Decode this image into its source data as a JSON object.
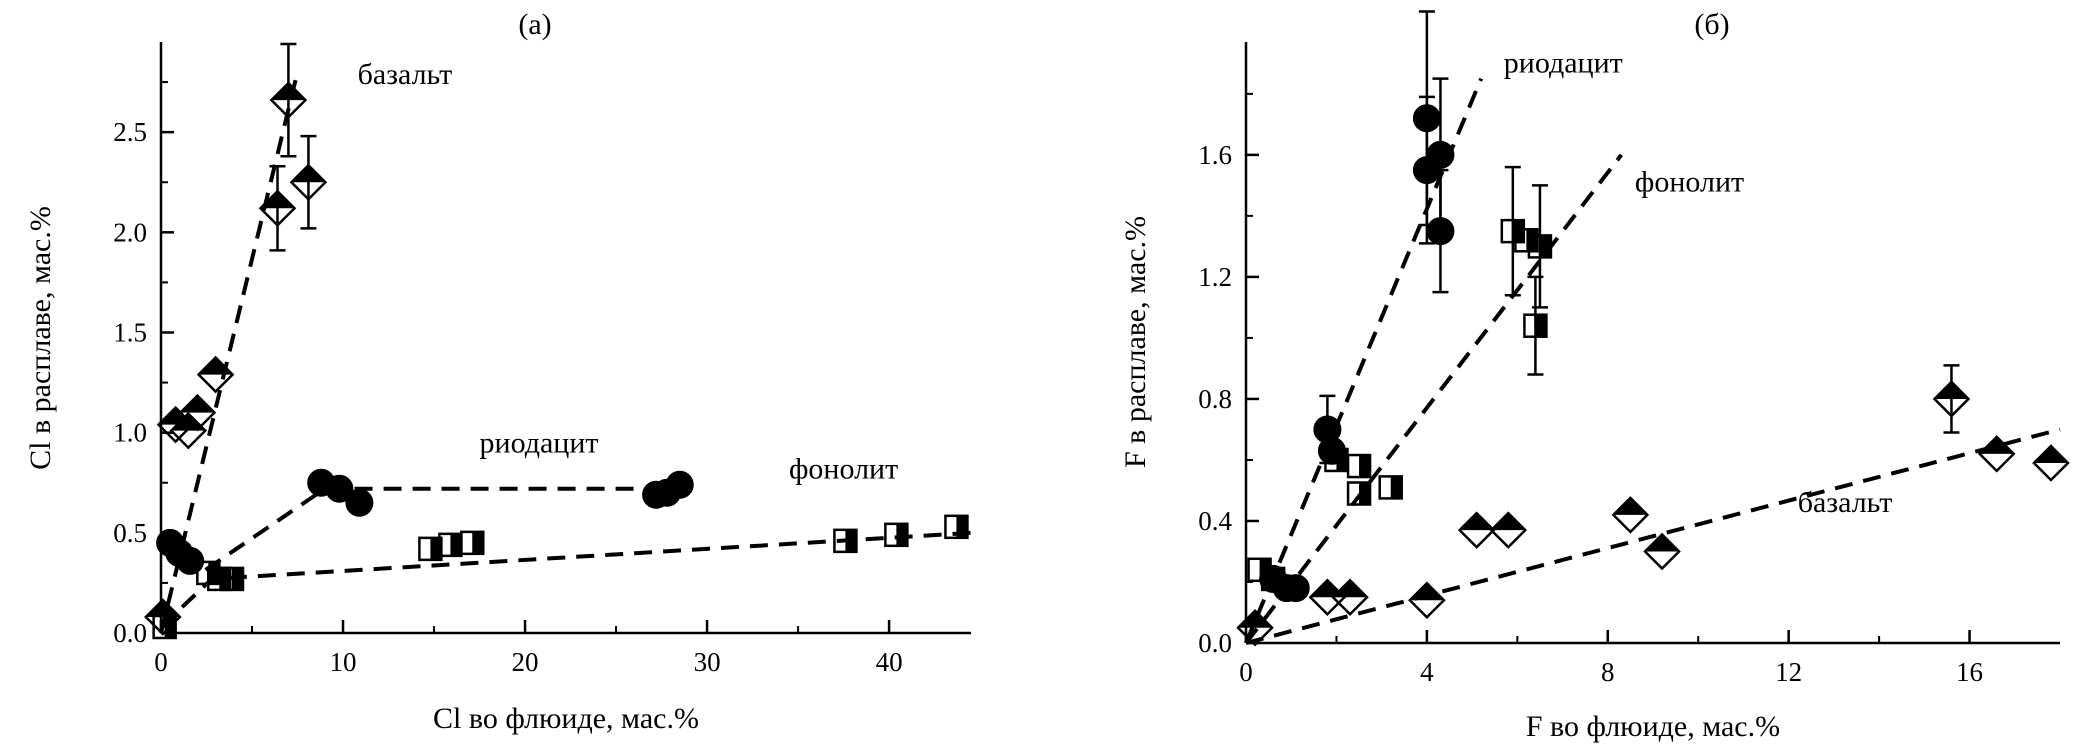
{
  "figure": {
    "panels": [
      "(a)",
      "(б)"
    ]
  },
  "chart_data": [
    {
      "type": "scatter",
      "panel_label": "(a)",
      "xlabel": "Cl во флюиде, мас.%",
      "ylabel": "Cl в расплаве, мас.%",
      "xlim": [
        0,
        44.5
      ],
      "ylim": [
        0,
        2.95
      ],
      "xticks": [
        0,
        10,
        20,
        30,
        40
      ],
      "xtick_labels": [
        "0",
        "10",
        "20",
        "30",
        "40"
      ],
      "yticks": [
        0,
        0.5,
        1.0,
        1.5,
        2.0,
        2.5
      ],
      "ytick_labels": [
        "0.0",
        "0.5",
        "1.0",
        "1.5",
        "2.0",
        "2.5"
      ],
      "grid": false,
      "legend": "none",
      "series": [
        {
          "name": "базальт",
          "marker": "half-filled-diamond",
          "points": [
            {
              "x": 0.1,
              "y": 0.08
            },
            {
              "x": 0.8,
              "y": 1.04
            },
            {
              "x": 1.5,
              "y": 1.01
            },
            {
              "x": 2.0,
              "y": 1.1
            },
            {
              "x": 3.0,
              "y": 1.29
            },
            {
              "x": 6.4,
              "y": 2.12,
              "err": 0.21
            },
            {
              "x": 7.0,
              "y": 2.66,
              "err": 0.28
            },
            {
              "x": 8.1,
              "y": 2.25,
              "err": 0.23
            }
          ],
          "fit": [
            [
              0,
              0
            ],
            [
              7.5,
              2.8
            ]
          ]
        },
        {
          "name": "риодацит",
          "marker": "filled-circle",
          "points": [
            {
              "x": 0.5,
              "y": 0.45
            },
            {
              "x": 1.0,
              "y": 0.4
            },
            {
              "x": 1.6,
              "y": 0.36
            },
            {
              "x": 8.8,
              "y": 0.75
            },
            {
              "x": 9.8,
              "y": 0.72
            },
            {
              "x": 10.9,
              "y": 0.65
            },
            {
              "x": 27.2,
              "y": 0.69
            },
            {
              "x": 27.8,
              "y": 0.7
            },
            {
              "x": 28.5,
              "y": 0.74
            }
          ],
          "fit": [
            [
              0,
              0.47
            ],
            [
              2.2,
              0.3
            ],
            [
              9.0,
              0.72
            ],
            [
              28.8,
              0.72
            ]
          ]
        },
        {
          "name": "фонолит",
          "marker": "half-filled-square",
          "points": [
            {
              "x": 0.2,
              "y": 0.03
            },
            {
              "x": 2.6,
              "y": 0.3
            },
            {
              "x": 3.2,
              "y": 0.27
            },
            {
              "x": 3.9,
              "y": 0.27
            },
            {
              "x": 14.8,
              "y": 0.42
            },
            {
              "x": 15.9,
              "y": 0.44
            },
            {
              "x": 17.1,
              "y": 0.45
            },
            {
              "x": 37.6,
              "y": 0.46
            },
            {
              "x": 40.4,
              "y": 0.49
            },
            {
              "x": 43.7,
              "y": 0.53
            }
          ],
          "fit": [
            [
              0,
              0.03
            ],
            [
              2.8,
              0.27
            ],
            [
              44.5,
              0.5
            ]
          ]
        }
      ],
      "annotations": [
        {
          "text": "базальт",
          "x": 10.8,
          "y": 2.74
        },
        {
          "text": "риодацит",
          "x": 17.5,
          "y": 0.9
        },
        {
          "text": "фонолит",
          "x": 34.5,
          "y": 0.77
        }
      ]
    },
    {
      "type": "scatter",
      "panel_label": "(б)",
      "xlabel": "F во флюиде, мас.%",
      "ylabel": "F в расплаве, мас.%",
      "xlim": [
        0,
        18
      ],
      "ylim": [
        0,
        1.97
      ],
      "xticks": [
        0,
        4,
        8,
        12,
        16
      ],
      "xtick_labels": [
        "0",
        "4",
        "8",
        "12",
        "16"
      ],
      "yticks": [
        0,
        0.4,
        0.8,
        1.2,
        1.6
      ],
      "ytick_labels": [
        "0.0",
        "0.4",
        "0.8",
        "1.2",
        "1.6"
      ],
      "grid": false,
      "legend": "none",
      "series": [
        {
          "name": "риодацит",
          "marker": "filled-circle",
          "points": [
            {
              "x": 0.6,
              "y": 0.21
            },
            {
              "x": 0.9,
              "y": 0.18
            },
            {
              "x": 1.1,
              "y": 0.18
            },
            {
              "x": 1.8,
              "y": 0.7,
              "err": 0.11
            },
            {
              "x": 1.9,
              "y": 0.63
            },
            {
              "x": 4.0,
              "y": 1.72,
              "err": 0.35
            },
            {
              "x": 4.0,
              "y": 1.55,
              "err": 0.24
            },
            {
              "x": 4.3,
              "y": 1.6,
              "err": 0.25
            },
            {
              "x": 4.3,
              "y": 1.35,
              "err": 0.2
            }
          ],
          "fit": [
            [
              0,
              0
            ],
            [
              5.2,
              1.85
            ]
          ]
        },
        {
          "name": "фонолит",
          "marker": "half-filled-square",
          "points": [
            {
              "x": 0.3,
              "y": 0.24
            },
            {
              "x": 0.6,
              "y": 0.21
            },
            {
              "x": 2.0,
              "y": 0.6
            },
            {
              "x": 2.5,
              "y": 0.58
            },
            {
              "x": 2.5,
              "y": 0.49
            },
            {
              "x": 3.2,
              "y": 0.51
            },
            {
              "x": 5.9,
              "y": 1.35,
              "err": 0.21
            },
            {
              "x": 6.2,
              "y": 1.32
            },
            {
              "x": 6.5,
              "y": 1.3,
              "err": 0.2
            },
            {
              "x": 6.4,
              "y": 1.04,
              "err": 0.16
            }
          ],
          "fit": [
            [
              0,
              0
            ],
            [
              8.3,
              1.6
            ]
          ]
        },
        {
          "name": "базальт",
          "marker": "half-filled-diamond",
          "points": [
            {
              "x": 0.2,
              "y": 0.05
            },
            {
              "x": 1.8,
              "y": 0.15
            },
            {
              "x": 2.3,
              "y": 0.15
            },
            {
              "x": 4.0,
              "y": 0.14
            },
            {
              "x": 5.1,
              "y": 0.37
            },
            {
              "x": 5.8,
              "y": 0.37
            },
            {
              "x": 8.5,
              "y": 0.42
            },
            {
              "x": 9.2,
              "y": 0.3
            },
            {
              "x": 15.6,
              "y": 0.8,
              "err": 0.11
            },
            {
              "x": 16.6,
              "y": 0.62
            },
            {
              "x": 17.8,
              "y": 0.59
            }
          ],
          "fit": [
            [
              0,
              0
            ],
            [
              18,
              0.7
            ]
          ]
        }
      ],
      "annotations": [
        {
          "text": "риодацит",
          "x": 5.7,
          "y": 1.87
        },
        {
          "text": "фонолит",
          "x": 8.6,
          "y": 1.48
        },
        {
          "text": "базальт",
          "x": 12.2,
          "y": 0.43
        }
      ]
    }
  ]
}
